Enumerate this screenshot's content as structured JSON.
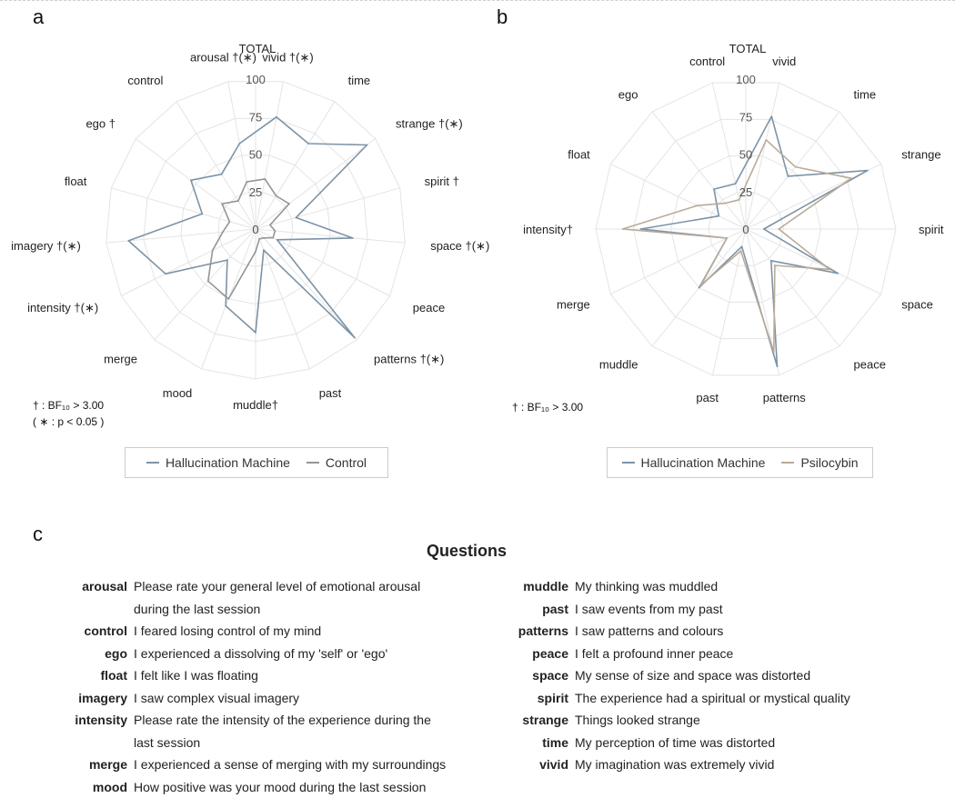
{
  "panels": [
    {
      "letter": "a",
      "center_label": "TOTAL",
      "axes": [
        "vivid †(∗)",
        "time",
        "strange †(∗)",
        "spirit †",
        "space †(∗)",
        "peace",
        "patterns †(∗)",
        "past",
        "muddle†",
        "mood",
        "merge",
        "intensity †(∗)",
        "imagery †(∗)",
        "float",
        "ego †",
        "control",
        "arousal †(∗)"
      ],
      "note": [
        "† : BF₁₀ > 3.00",
        "( ∗ : p < 0.05 )"
      ],
      "legend": [
        "Hallucination Machine",
        "Control"
      ]
    },
    {
      "letter": "b",
      "center_label": "TOTAL",
      "axes": [
        "vivid",
        "time",
        "strange",
        "spirit",
        "space",
        "peace",
        "patterns",
        "past",
        "muddle",
        "merge",
        "intensity†",
        "float",
        "ego",
        "control"
      ],
      "note": [
        "† : BF₁₀ > 3.00"
      ],
      "legend": [
        "Hallucination Machine",
        "Psilocybin"
      ]
    }
  ],
  "chart_data": [
    {
      "type": "radar",
      "title": "",
      "axes": [
        "vivid",
        "time",
        "strange",
        "spirit",
        "space",
        "peace",
        "patterns",
        "past",
        "muddle",
        "mood",
        "merge",
        "intensity",
        "imagery",
        "float",
        "ego",
        "control",
        "arousal"
      ],
      "rlim": [
        0,
        100
      ],
      "rticks": [
        0,
        25,
        50,
        75,
        100
      ],
      "legend_position": "bottom",
      "series": [
        {
          "name": "Hallucination Machine",
          "color": "#7d93a6",
          "values": [
            76,
            67,
            93,
            28,
            65,
            16,
            98,
            15,
            69,
            55,
            28,
            67,
            85,
            37,
            54,
            43,
            58
          ]
        },
        {
          "name": "Control",
          "color": "#959595",
          "values": [
            34,
            26,
            28,
            10,
            13,
            13,
            8,
            7,
            15,
            50,
            47,
            32,
            22,
            18,
            28,
            22,
            32
          ]
        }
      ]
    },
    {
      "type": "radar",
      "title": "",
      "axes": [
        "vivid",
        "time",
        "strange",
        "spirit",
        "space",
        "peace",
        "patterns",
        "past",
        "muddle",
        "merge",
        "intensity",
        "float",
        "ego",
        "control"
      ],
      "rlim": [
        0,
        100
      ],
      "rticks": [
        0,
        25,
        50,
        75,
        100
      ],
      "legend_position": "bottom",
      "series": [
        {
          "name": "Hallucination Machine",
          "color": "#7d93a6",
          "values": [
            77,
            45,
            90,
            12,
            68,
            27,
            94,
            12,
            50,
            14,
            70,
            20,
            34,
            31
          ]
        },
        {
          "name": "Psilocybin",
          "color": "#b9ab98",
          "values": [
            61,
            53,
            78,
            22,
            62,
            31,
            84,
            15,
            48,
            14,
            82,
            36,
            22,
            20
          ]
        }
      ]
    }
  ],
  "questions": {
    "letter": "c",
    "title": "Questions",
    "left": [
      {
        "term": "arousal",
        "text": "Please rate your general level of emotional arousal"
      },
      {
        "term": "",
        "text": "during the last session"
      },
      {
        "term": "control",
        "text": "I feared losing control of my mind"
      },
      {
        "term": "ego",
        "text": "I experienced a dissolving of my 'self' or 'ego'"
      },
      {
        "term": "float",
        "text": "I felt like I was floating"
      },
      {
        "term": "imagery",
        "text": "I saw complex visual imagery"
      },
      {
        "term": "intensity",
        "text": "Please rate the intensity of the experience during the"
      },
      {
        "term": "",
        "text": "last session"
      },
      {
        "term": "merge",
        "text": "I experienced a sense of merging with my surroundings"
      },
      {
        "term": "mood",
        "text": "How positive was your mood during the last session"
      }
    ],
    "right": [
      {
        "term": "muddle",
        "text": "My thinking was muddled"
      },
      {
        "term": "past",
        "text": "I saw events from my past"
      },
      {
        "term": "patterns",
        "text": "I saw patterns and colours"
      },
      {
        "term": "peace",
        "text": "I felt a profound inner peace"
      },
      {
        "term": "space",
        "text": "My sense of size and space was distorted"
      },
      {
        "term": "spirit",
        "text": "The experience had a spiritual or mystical quality"
      },
      {
        "term": "strange",
        "text": "Things looked strange"
      },
      {
        "term": "time",
        "text": "My perception of time was distorted"
      },
      {
        "term": "vivid",
        "text": "My imagination was extremely vivid"
      }
    ]
  }
}
